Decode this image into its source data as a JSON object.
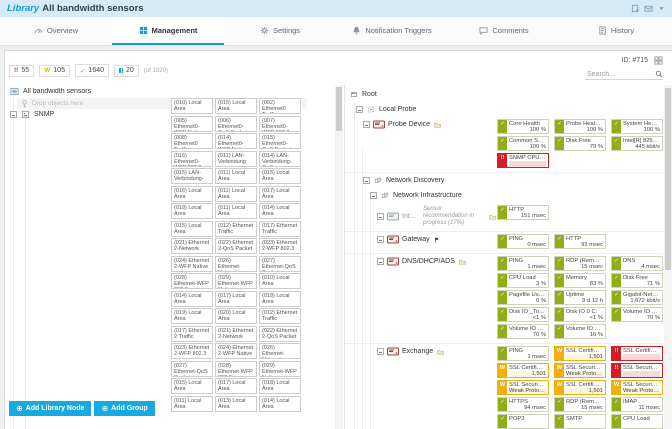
{
  "header": {
    "title_prefix": "Library",
    "title": "All bandwidth sensors"
  },
  "window_actions": [
    "new-window",
    "email",
    "caret-down"
  ],
  "tabs": [
    {
      "label": "Overview",
      "icon": "gauge",
      "active": false
    },
    {
      "label": "Management",
      "icon": "management",
      "active": true
    },
    {
      "label": "Settings",
      "icon": "gear",
      "active": false
    },
    {
      "label": "Notification Triggers",
      "icon": "bell",
      "active": false
    },
    {
      "label": "Comments",
      "icon": "comment",
      "active": false
    },
    {
      "label": "History",
      "icon": "history",
      "active": false
    }
  ],
  "toolbar": {
    "counts": [
      {
        "status": "error",
        "symbol": "!!",
        "value": "55"
      },
      {
        "status": "warning",
        "symbol": "W",
        "value": "105"
      },
      {
        "status": "up",
        "symbol": "✓",
        "value": "1640"
      },
      {
        "status": "paused",
        "symbol": "II",
        "value": "20"
      }
    ],
    "total_label": "(of 1820)",
    "object_id": "ID: #715",
    "search_placeholder": "Search..."
  },
  "left_panel": {
    "library_root": "All bandwidth sensors",
    "drop_hint": "Drop objects here",
    "node": "SNMP",
    "chips": [
      "(010) Local Area",
      "(015) Local Area",
      "(002) Ethernet0 Traffic",
      "(005) Ethernet0-WFP Native",
      "(006) Ethernet0-QoS Packet",
      "(007) Ethernet0-WFP 802.3",
      "(008) Ethernet0 Traffic",
      "(014) Ethernet0-WFP Native",
      "(015) Ethernet0-QoS Packet",
      "(016) Ethernet0-WFP 802.3",
      "(011) LAN-Verbindung",
      "(014) LAN-Verbindung-QoS",
      "(015) LAN-Verbindung-",
      "(011) Local Area",
      "(015) Local Area",
      "(016) Local Area",
      "(011) Local Area",
      "(017) Local Area",
      "(018) Local Area",
      "(011) Local Area",
      "(014) Local Area",
      "(015) Local Area",
      "(012) Ethernet Traffic",
      "(017) Ethernet Traffic",
      "(021) Ethernet 2-Network",
      "(022) Ethernet 2-QoS Packet",
      "(023) Ethernet 2-WFP 802.3",
      "(024) Ethernet 2-WFP Native",
      "(026) Ethernet-Network",
      "(027) Ethernet-QoS Packet",
      "(028) Ethernet-WFP 802.3",
      "(029) Ethernet-WFP Native",
      "(010) Local Area",
      "(014) Local Area",
      "(017) Local Area",
      "(018) Local Area",
      "(019) Local Area",
      "(020) Local Area",
      "(012) Ethernet Traffic",
      "(017) Ethernet 2 Traffic",
      "(021) Ethernet 2-Network",
      "(022) Ethernet 2-QoS Packet",
      "(023) Ethernet 2-WFP 802.3",
      "(024) Ethernet 2-WFP Native",
      "(026) Ethernet-Network",
      "(027) Ethernet-QoS Packet",
      "(028) Ethernet-WFP 802.3",
      "(029) Ethernet-WFP Native",
      "(015) Local Area",
      "(017) Local Area",
      "(018) Local Area",
      "(011) Local Area",
      "(013) Local Area",
      "(014) Local Area"
    ],
    "buttons": [
      {
        "label": "Add Library Node"
      },
      {
        "label": "Add Group"
      }
    ]
  },
  "right_panel": {
    "rows": [
      {
        "label": "Root",
        "indent": 0,
        "icon": "root",
        "expander": false
      },
      {
        "label": "Local Probe",
        "indent": 1,
        "icon": "probe",
        "expander": true
      },
      {
        "label": "Probe Device",
        "indent": 2,
        "icon": "device",
        "expander": true,
        "folder": true,
        "sensors": [
          {
            "name": "Core Health",
            "value": "100 %",
            "status": "up"
          },
          {
            "name": "Probe Heal…",
            "value": "100 %",
            "status": "up"
          },
          {
            "name": "System He…",
            "value": "100 %",
            "status": "up"
          },
          {
            "name": "Common S…",
            "value": "100 %",
            "status": "up"
          },
          {
            "name": "Disk Free",
            "value": "79 %",
            "status": "up"
          },
          {
            "name": "Intel[R] 825…",
            "value": "445 kbit/s",
            "status": "up"
          },
          {
            "name": "SNMP CPU…",
            "value": "",
            "status": "error"
          }
        ]
      },
      {
        "label": "Network Discovery",
        "indent": 2,
        "icon": "group",
        "expander": true
      },
      {
        "label": "Network Infrastructure",
        "indent": 3,
        "icon": "group",
        "expander": true
      },
      {
        "label": "Inte…",
        "indent": 4,
        "icon": "device-muted",
        "expander": true,
        "folder": true,
        "note": "Sensor recommendation in progress (17%)",
        "sensors": [
          {
            "name": "HTTP",
            "value": "151 msec",
            "status": "up"
          }
        ]
      },
      {
        "label": "Gateway",
        "indent": 4,
        "icon": "device",
        "expander": true,
        "flag": true,
        "sensors": [
          {
            "name": "PING",
            "value": "0 msec",
            "status": "up"
          },
          {
            "name": "HTTP",
            "value": "93 msec",
            "status": "up"
          }
        ]
      },
      {
        "label": "DNS/DHCP/ADS",
        "indent": 4,
        "icon": "device",
        "expander": true,
        "folder": true,
        "sensors": [
          {
            "name": "PING",
            "value": "1 msec",
            "status": "up"
          },
          {
            "name": "RDP (Rem…",
            "value": "15 msec",
            "status": "up"
          },
          {
            "name": "DNS",
            "value": "4 msec",
            "status": "up"
          },
          {
            "name": "CPU Load",
            "value": "3 %",
            "status": "up"
          },
          {
            "name": "Memory",
            "value": "83 %",
            "status": "up"
          },
          {
            "name": "Disk Free",
            "value": "71 %",
            "status": "up"
          },
          {
            "name": "Pagefile Us…",
            "value": "0 %",
            "status": "up"
          },
          {
            "name": "Uptime",
            "value": "9 d 12 h",
            "status": "up"
          },
          {
            "name": "Gigabit-Net…",
            "value": "1,672 kbit/s",
            "status": "up"
          },
          {
            "name": "Disk IO _To…",
            "value": "<1 %",
            "status": "up"
          },
          {
            "name": "Disk IO 0 C:",
            "value": "<1 %",
            "status": "up"
          },
          {
            "name": "Volume IO …",
            "value": "70 %",
            "status": "up"
          },
          {
            "name": "Volume IO …",
            "value": "70 %",
            "status": "up"
          },
          {
            "name": "Volume IO …",
            "value": "16 %",
            "status": "up"
          }
        ]
      },
      {
        "label": "Exchange",
        "indent": 4,
        "icon": "device",
        "expander": true,
        "folder": true,
        "sensors": [
          {
            "name": "PING",
            "value": "1 msec",
            "status": "up"
          },
          {
            "name": "SSL Certifi…",
            "value": "1,501",
            "status": "warning"
          },
          {
            "name": "SSL Certifi…",
            "value": "",
            "status": "error"
          },
          {
            "name": "SSL Certifi…",
            "value": "1,501",
            "status": "warning"
          },
          {
            "name": "SSL Securi…",
            "value": "Weak Proto…",
            "status": "warning",
            "align": "left"
          },
          {
            "name": "SSL Securi…",
            "value": "",
            "status": "error"
          },
          {
            "name": "SSL Securi…",
            "value": "Weak Proto…",
            "status": "warning",
            "align": "left"
          },
          {
            "name": "SSL Certifi…",
            "value": "1,501",
            "status": "warning"
          },
          {
            "name": "SSL Securi…",
            "value": "Weak Proto…",
            "status": "warning",
            "align": "left"
          },
          {
            "name": "HTTPS",
            "value": "94 msec",
            "status": "up"
          },
          {
            "name": "RDP (Rem…",
            "value": "15 msec",
            "status": "up"
          },
          {
            "name": "IMAP",
            "value": "11 msec",
            "status": "up"
          },
          {
            "name": "POP3",
            "value": "",
            "status": "up"
          },
          {
            "name": "SMTP",
            "value": "",
            "status": "up"
          },
          {
            "name": "CPU Load",
            "value": "",
            "status": "up"
          }
        ]
      }
    ]
  },
  "colors": {
    "up": "#91ad18",
    "warning": "#eeb111",
    "error": "#d71d24",
    "paused": "#1ca8dd",
    "accent": "#149cd8"
  }
}
